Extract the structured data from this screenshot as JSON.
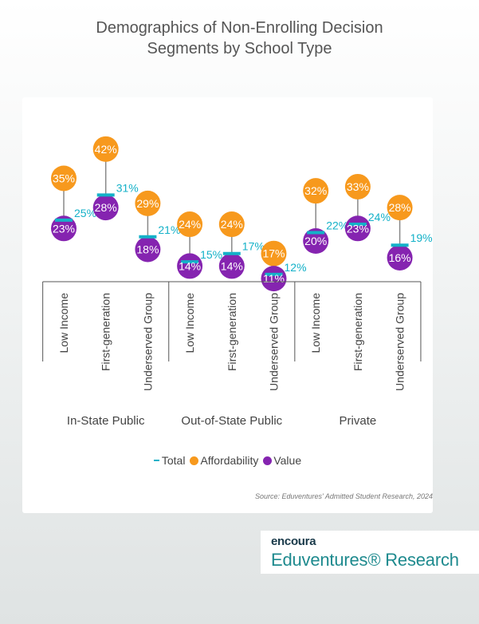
{
  "title_line1": "Demographics of Non-Enrolling Decision",
  "title_line2": "Segments by School Type",
  "legend": {
    "total": "Total",
    "affordability": "Affordability",
    "value": "Value"
  },
  "source": "Source: Eduventures' Admitted Student Research, 2024",
  "brand": {
    "small": "encoura",
    "large": "Eduventures® Research"
  },
  "colors": {
    "affordability": "#f7991d",
    "value": "#8524b0",
    "total": "#14b1c8",
    "stem": "#888888",
    "axis": "#555555"
  },
  "chart_data": {
    "type": "dot-range",
    "groups": [
      "In-State Public",
      "Out-of-State Public",
      "Private"
    ],
    "categories": [
      "Low Income",
      "First-generation",
      "Underserved Group",
      "Low Income",
      "First-generation",
      "Underserved Group",
      "Low Income",
      "First-generation",
      "Underserved Group"
    ],
    "series": [
      {
        "name": "Total",
        "values": [
          25,
          31,
          21,
          15,
          17,
          12,
          22,
          24,
          19
        ],
        "labels": [
          "25%",
          "31%",
          "21%",
          "15%",
          "17%",
          "12%",
          "22%",
          "24%",
          "19%"
        ]
      },
      {
        "name": "Affordability",
        "values": [
          35,
          42,
          29,
          24,
          24,
          17,
          32,
          33,
          28
        ],
        "labels": [
          "35%",
          "42%",
          "29%",
          "24%",
          "24%",
          "17%",
          "32%",
          "33%",
          "28%"
        ]
      },
      {
        "name": "Value",
        "values": [
          23,
          28,
          18,
          14,
          14,
          11,
          20,
          23,
          16
        ],
        "labels": [
          "23%",
          "28%",
          "18%",
          "14%",
          "14%",
          "11%",
          "20%",
          "23%",
          "16%"
        ]
      }
    ]
  }
}
